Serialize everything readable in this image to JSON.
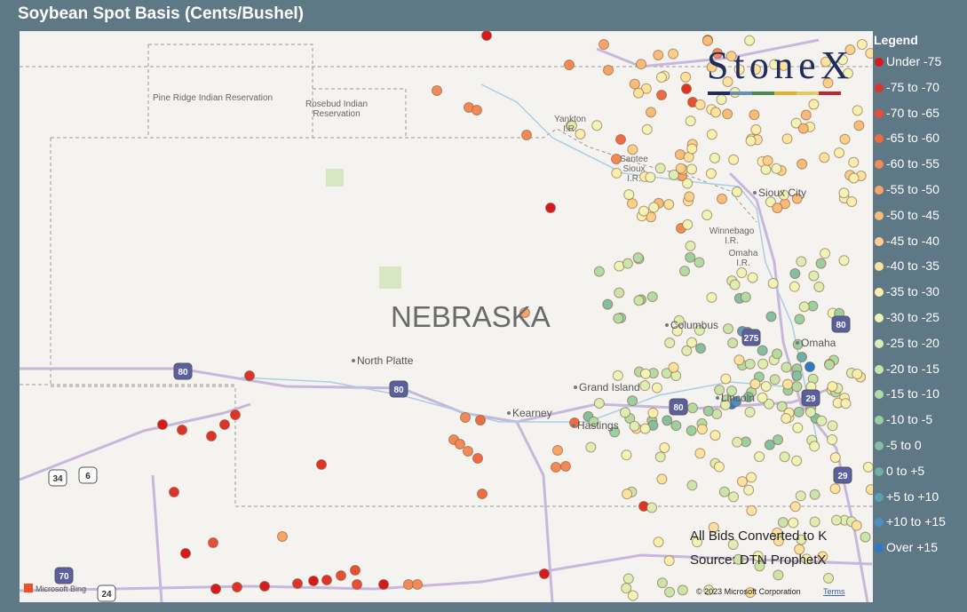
{
  "title": "Soybean Spot Basis (Cents/Bushel)",
  "legend": {
    "title": "Legend",
    "items": [
      {
        "label": "Under -75",
        "color": "#d7191c"
      },
      {
        "label": "-75 to -70",
        "color": "#df3327"
      },
      {
        "label": "-70 to -65",
        "color": "#e74f35"
      },
      {
        "label": "-65 to -60",
        "color": "#ee6c44"
      },
      {
        "label": "-60 to -55",
        "color": "#f38a55"
      },
      {
        "label": "-55 to -50",
        "color": "#f7a466"
      },
      {
        "label": "-50 to -45",
        "color": "#fabb78"
      },
      {
        "label": "-45 to -40",
        "color": "#fcd08b"
      },
      {
        "label": "-40 to -35",
        "color": "#fde29d"
      },
      {
        "label": "-35 to -30",
        "color": "#fbefae"
      },
      {
        "label": "-30 to -25",
        "color": "#f0f5b6"
      },
      {
        "label": "-25 to -20",
        "color": "#ddeeb2"
      },
      {
        "label": "-20 to -15",
        "color": "#c8e5aa"
      },
      {
        "label": "-15 to -10",
        "color": "#b3dba4"
      },
      {
        "label": "-10 to -5",
        "color": "#9acfa0"
      },
      {
        "label": "-5 to 0",
        "color": "#82c0a0"
      },
      {
        "label": "0 to +5",
        "color": "#6eaea4"
      },
      {
        "label": "+5 to +10",
        "color": "#5d9fb0"
      },
      {
        "label": "+10 to +15",
        "color": "#4d8fc0"
      },
      {
        "label": "Over +15",
        "color": "#2b7bcc"
      }
    ]
  },
  "logo": "StoneX",
  "notes": [
    "All Bids Converted to K",
    "Source: DTN ProphetX"
  ],
  "map": {
    "state_label": "NEBRASKA",
    "places": [
      "North Platte",
      "Grand Island",
      "Kearney",
      "Hastings",
      "Columbus",
      "Omaha",
      "Lincoln",
      "Sioux City"
    ],
    "areas": [
      [
        "Pine Ridge Indian Reservation"
      ],
      [
        "Rosebud Indian",
        "Reservation"
      ],
      [
        "Yankton",
        "I.R."
      ],
      [
        "Santee",
        "Sioux",
        "I.R."
      ],
      [
        "Winnebago",
        "I.R."
      ],
      [
        "Omaha",
        "I.R."
      ]
    ],
    "highways": [
      "80",
      "80",
      "80",
      "80",
      "29",
      "29",
      "275",
      "34",
      "6",
      "70",
      "24"
    ]
  },
  "footer": {
    "attribution": "Microsoft Bing",
    "copyright": "© 2023 Microsoft Corporation",
    "terms": "Terms"
  }
}
